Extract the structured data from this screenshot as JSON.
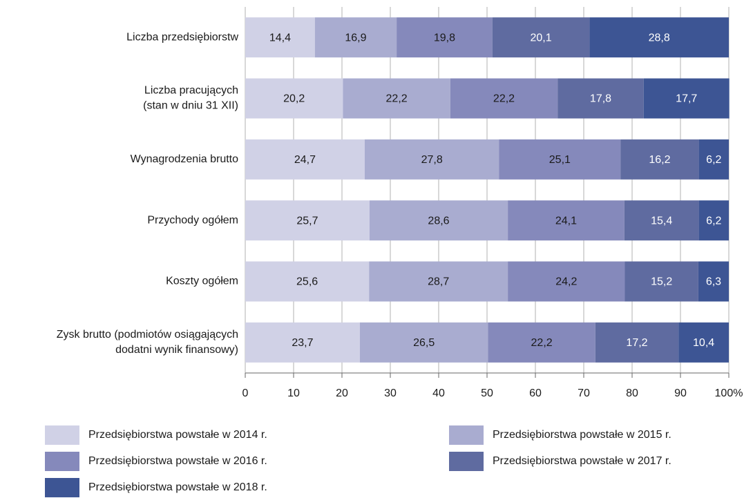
{
  "chart_data": {
    "type": "stacked_bar_horizontal",
    "categories": [
      [
        "Liczba przedsiębiorstw"
      ],
      [
        "Liczba pracujących",
        "(stan w dniu 31 XII)"
      ],
      [
        "Wynagrodzenia brutto"
      ],
      [
        "Przychody ogółem"
      ],
      [
        "Koszty ogółem"
      ],
      [
        "Zysk brutto (podmiotów osiągających",
        "dodatni wynik finansowy)"
      ]
    ],
    "series": [
      {
        "name": "Przedsiębiorstwa powstałe w 2014 r.",
        "color": "#d0d1e6",
        "values": [
          14.4,
          20.2,
          24.7,
          25.7,
          25.6,
          23.7
        ],
        "value_labels": [
          "14,4",
          "20,2",
          "24,7",
          "25,7",
          "25,6",
          "23,7"
        ]
      },
      {
        "name": "Przedsiębiorstwa powstałe w 2015 r.",
        "color": "#a9acd0",
        "values": [
          16.9,
          22.2,
          27.8,
          28.6,
          28.7,
          26.5
        ],
        "value_labels": [
          "16,9",
          "22,2",
          "27,8",
          "28,6",
          "28,7",
          "26,5"
        ]
      },
      {
        "name": "Przedsiębiorstwa powstałe w 2016 r.",
        "color": "#8589bb",
        "values": [
          19.8,
          22.2,
          25.1,
          24.1,
          24.2,
          22.2
        ],
        "value_labels": [
          "19,8",
          "22,2",
          "25,1",
          "24,1",
          "24,2",
          "22,2"
        ]
      },
      {
        "name": "Przedsiębiorstwa powstałe w 2017 r.",
        "color": "#5f6ba0",
        "values": [
          20.1,
          17.8,
          16.2,
          15.4,
          15.2,
          17.2
        ],
        "value_labels": [
          "20,1",
          "17,8",
          "16,2",
          "15,4",
          "15,2",
          "17,2"
        ]
      },
      {
        "name": "Przedsiębiorstwa powstałe w 2018 r.",
        "color": "#3d5594",
        "values": [
          28.8,
          17.7,
          6.2,
          6.2,
          6.3,
          10.4
        ],
        "value_labels": [
          "28,8",
          "17,7",
          "6,2",
          "6,2",
          "6,3",
          "10,4"
        ]
      }
    ],
    "xlim": [
      0,
      100
    ],
    "xticks": [
      0,
      10,
      20,
      30,
      40,
      50,
      60,
      70,
      80,
      90,
      {
        "value": 100,
        "label": "100%"
      }
    ],
    "grid": true
  }
}
